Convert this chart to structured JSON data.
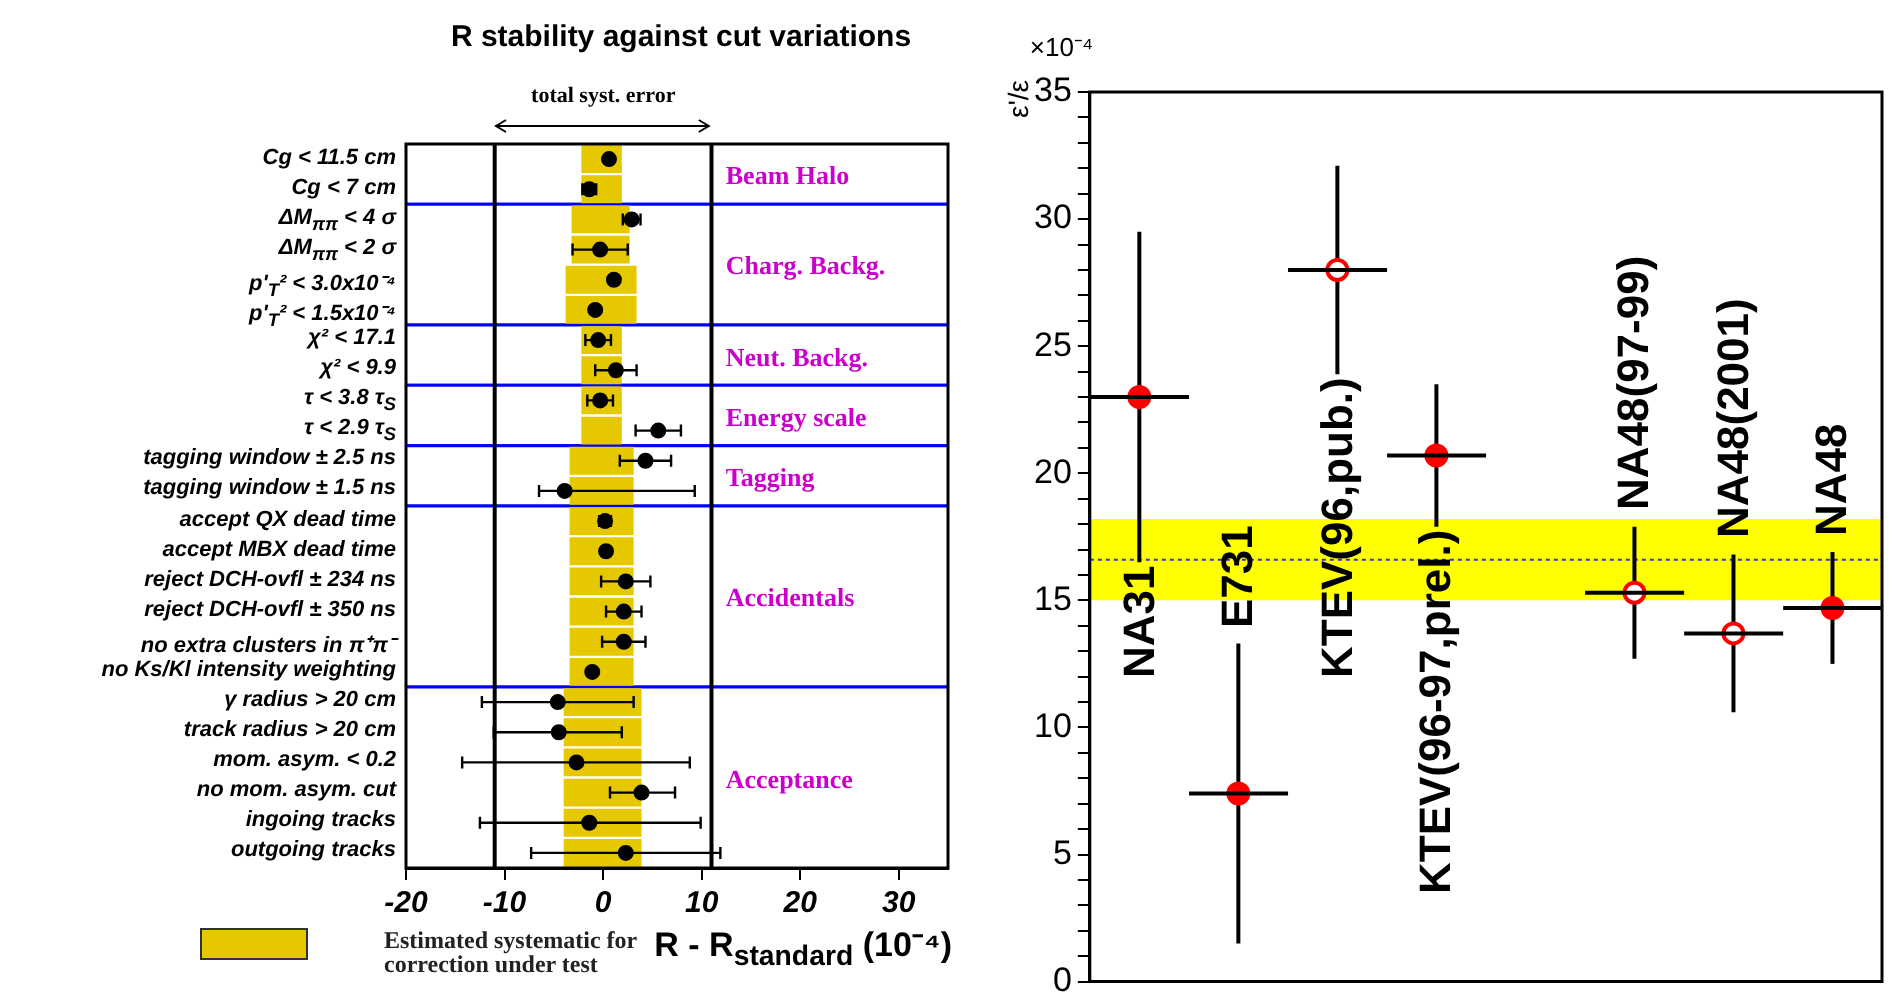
{
  "chart_data": [
    {
      "type": "bar",
      "orientation": "horizontal",
      "title": "R stability against cut variations",
      "xlabel": "R - R$_{standard}$ (10⁻⁴)",
      "legend": "bottom left",
      "xlim": [
        -20,
        35
      ],
      "xticks": [
        -20,
        -10,
        0,
        10,
        20,
        30
      ],
      "categories": [
        "Cg < 11.5 cm",
        "Cg < 7 cm",
        "ΔM$_{ππ}$ < 4 σ",
        "ΔM$_{ππ}$ < 2 σ",
        "p'$_{T}$² < 3.0x10⁻⁴",
        "p'$_{T}$² < 1.5x10⁻⁴",
        "χ² < 17.1",
        "χ² < 9.9",
        "τ < 3.8 τ$_{S}$",
        "τ < 2.9 τ$_{S}$",
        "tagging window ± 2.5 ns",
        "tagging window ± 1.5 ns",
        "accept QX dead time",
        "accept MBX dead time",
        "reject DCH-ovfl ± 234 ns",
        "reject DCH-ovfl ± 350 ns",
        "no extra clusters in π⁺π⁻",
        "no Ks/Kl intensity weighting",
        "γ radius > 20 cm",
        "track radius > 20 cm",
        "mom. asym. < 0.2",
        "no mom. asym. cut",
        "ingoing tracks",
        "outgoing tracks"
      ],
      "series": [
        {
          "name": "Estimated systematic for correction under test",
          "type": "bar",
          "color": "#e6c800",
          "base": [
            -2.2,
            -2.2,
            -3.2,
            -3.2,
            -3.8,
            -3.8,
            -2.2,
            -2.2,
            -2.2,
            -2.2,
            -3.4,
            -3.4,
            -3.4,
            -3.4,
            -3.4,
            -3.4,
            -3.4,
            -3.4,
            -4.0,
            -4.0,
            -4.0,
            -4.0,
            -4.0,
            -4.0
          ],
          "values": [
            4.1,
            4.1,
            5.9,
            5.9,
            7.2,
            7.2,
            4.1,
            4.1,
            4.1,
            4.1,
            6.5,
            6.5,
            6.5,
            6.5,
            6.5,
            6.5,
            6.5,
            6.5,
            7.9,
            7.9,
            7.9,
            7.9,
            7.9,
            7.9
          ]
        },
        {
          "type": "scatter",
          "color": "#000000",
          "marker": "circle",
          "values": [
            0.6,
            -1.4,
            2.9,
            -0.3,
            1.1,
            -0.8,
            -0.5,
            1.3,
            -0.3,
            5.6,
            4.3,
            -3.9,
            0.2,
            0.3,
            2.3,
            2.1,
            2.1,
            -1.1,
            -4.6,
            -4.5,
            -2.7,
            3.9,
            -1.4,
            2.3
          ],
          "errors": [
            null,
            0.7,
            0.9,
            2.8,
            null,
            null,
            1.3,
            2.1,
            1.3,
            2.3,
            2.6,
            [
              -6.5,
              9.3
            ],
            0.6,
            null,
            2.5,
            1.8,
            2.2,
            null,
            [
              -12.3,
              3.1
            ],
            [
              -11.1,
              1.9
            ],
            [
              -14.3,
              8.8
            ],
            [
              0.7,
              7.3
            ],
            [
              -12.5,
              9.9
            ],
            [
              -7.3,
              11.9
            ]
          ]
        }
      ],
      "ref_lines": [
        {
          "axis": "x",
          "value": -11,
          "color": "#000000"
        },
        {
          "axis": "x",
          "value": 11,
          "color": "#000000"
        }
      ],
      "bands": [
        {
          "axis": "y",
          "from": "Cg < 11.5 cm",
          "to": "Cg < 7 cm",
          "label": "Beam Halo",
          "color": "#ffffff"
        },
        {
          "axis": "y",
          "from": "ΔM$_{ππ}$ < 4 σ",
          "to": "p'$_{T}$² < 1.5x10⁻⁴",
          "label": "Charg. Backg.",
          "color": "#ffffff"
        },
        {
          "axis": "y",
          "from": "χ² < 17.1",
          "to": "χ² < 9.9",
          "label": "Neut. Backg.",
          "color": "#ffffff"
        },
        {
          "axis": "y",
          "from": "τ < 3.8 τ$_{S}$",
          "to": "τ < 2.9 τ$_{S}$",
          "label": "Energy scale",
          "color": "#ffffff"
        },
        {
          "axis": "y",
          "from": "tagging window ± 2.5 ns",
          "to": "tagging window ± 1.5 ns",
          "label": "Tagging",
          "color": "#ffffff"
        },
        {
          "axis": "y",
          "from": "accept QX dead time",
          "to": "no Ks/Kl intensity weighting",
          "label": "Accidentals",
          "color": "#ffffff"
        },
        {
          "axis": "y",
          "from": "γ radius > 20 cm",
          "to": "outgoing tracks",
          "label": "Acceptance",
          "color": "#ffffff"
        }
      ],
      "annotations": [
        "total syst. error"
      ]
    },
    {
      "type": "scatter",
      "ylabel": "ε'/ε",
      "tick_labels": "y",
      "ylim": [
        0,
        35
      ],
      "yticks": [
        0,
        {
          "value": 1,
          "label": null
        },
        {
          "value": 2,
          "label": null
        },
        {
          "value": 3,
          "label": null
        },
        {
          "value": 4,
          "label": null
        },
        5,
        {
          "value": 6,
          "label": null
        },
        {
          "value": 7,
          "label": null
        },
        {
          "value": 8,
          "label": null
        },
        {
          "value": 9,
          "label": null
        },
        10,
        {
          "value": 11,
          "label": null
        },
        {
          "value": 12,
          "label": null
        },
        {
          "value": 13,
          "label": null
        },
        {
          "value": 14,
          "label": null
        },
        15,
        {
          "value": 16,
          "label": null
        },
        {
          "value": 17,
          "label": null
        },
        {
          "value": 18,
          "label": null
        },
        {
          "value": 19,
          "label": null
        },
        20,
        {
          "value": 21,
          "label": null
        },
        {
          "value": 22,
          "label": null
        },
        {
          "value": 23,
          "label": null
        },
        {
          "value": 24,
          "label": null
        },
        25,
        {
          "value": 26,
          "label": null
        },
        {
          "value": 27,
          "label": null
        },
        {
          "value": 28,
          "label": null
        },
        {
          "value": 29,
          "label": null
        },
        30,
        {
          "value": 31,
          "label": null
        },
        {
          "value": 32,
          "label": null
        },
        {
          "value": 33,
          "label": null
        },
        {
          "value": 34,
          "label": null
        },
        35
      ],
      "categories": [
        "NA31",
        "E731",
        "KTEV(96,pub.)",
        "KTEV(96-97,prel.)",
        null,
        "NA48(97-99)",
        "NA48(2001)",
        "NA48"
      ],
      "series": [
        {
          "color": "#ff0000",
          "marker": "circle",
          "values": [
            23,
            7.4,
            null,
            20.7,
            null,
            null,
            null,
            14.7
          ],
          "errors": [
            6.5,
            5.9,
            null,
            2.8,
            null,
            null,
            null,
            2.2
          ]
        },
        {
          "color": "#ff0000",
          "colors": [
            null,
            null,
            "#ffffff",
            null,
            null,
            "#ffffff",
            "#ffffff",
            null
          ],
          "marker": "circle",
          "values": [
            null,
            null,
            28,
            null,
            null,
            15.3,
            13.7,
            null
          ],
          "errors": [
            null,
            null,
            4.1,
            null,
            null,
            2.6,
            3.1,
            null
          ]
        }
      ],
      "bands": [
        {
          "axis": "y",
          "from": 15,
          "to": 18.2,
          "color": "#ffff00"
        }
      ],
      "ref_lines": [
        {
          "axis": "y",
          "value": 16.6,
          "color": "#3333cc",
          "line_style": "dotted"
        }
      ],
      "annotations": [
        "×10⁻⁴"
      ]
    }
  ]
}
